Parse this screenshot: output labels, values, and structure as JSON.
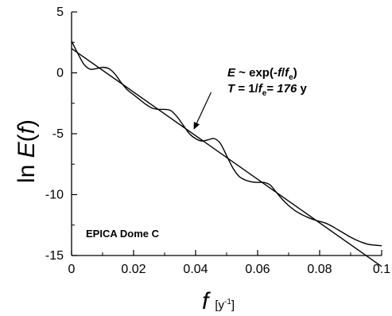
{
  "chart_data": {
    "type": "line",
    "title": "",
    "xlabel": {
      "symbol": "f",
      "unit_prefix": "[y",
      "unit_exp": "-1",
      "unit_suffix": "]"
    },
    "ylabel": {
      "prefix": "ln ",
      "symbol": "E",
      "arg_open": "(",
      "arg": "f",
      "arg_close": ")"
    },
    "xlim": [
      0,
      0.1
    ],
    "ylim": [
      -15,
      5
    ],
    "xticks": [
      {
        "value": 0,
        "label": "0"
      },
      {
        "value": 0.02,
        "label": "0.02"
      },
      {
        "value": 0.04,
        "label": "0.04"
      },
      {
        "value": 0.06,
        "label": "0.06"
      },
      {
        "value": 0.08,
        "label": "0.08"
      },
      {
        "value": 0.1,
        "label": "0.1"
      }
    ],
    "yticks": [
      {
        "value": 5,
        "label": "5"
      },
      {
        "value": 0,
        "label": "0"
      },
      {
        "value": -5,
        "label": "-5"
      },
      {
        "value": -10,
        "label": "-10"
      },
      {
        "value": -15,
        "label": "-15"
      }
    ],
    "series": [
      {
        "x": [
          0,
          0.002,
          0.004,
          0.006,
          0.008,
          0.01,
          0.012,
          0.014,
          0.016,
          0.018,
          0.02,
          0.022,
          0.024,
          0.026,
          0.028,
          0.03,
          0.032,
          0.034,
          0.036,
          0.038,
          0.04,
          0.042,
          0.044,
          0.046,
          0.048,
          0.05,
          0.052,
          0.054,
          0.056,
          0.058,
          0.06,
          0.062,
          0.064,
          0.066,
          0.068,
          0.07,
          0.072,
          0.074,
          0.076,
          0.078,
          0.08,
          0.082,
          0.084,
          0.086,
          0.088,
          0.09,
          0.092,
          0.094,
          0.096,
          0.098,
          0.1
        ],
        "y": [
          2.6,
          1.6,
          0.7,
          0.3,
          0.35,
          0.45,
          0.35,
          -0.1,
          -0.8,
          -1.4,
          -1.8,
          -2.2,
          -2.6,
          -2.9,
          -3.0,
          -3.0,
          -3.1,
          -3.6,
          -4.3,
          -5.0,
          -5.4,
          -5.6,
          -5.5,
          -5.4,
          -5.8,
          -6.8,
          -7.8,
          -8.5,
          -8.8,
          -8.95,
          -9.0,
          -9.0,
          -9.2,
          -9.8,
          -10.4,
          -10.9,
          -11.3,
          -11.6,
          -11.85,
          -12.05,
          -12.2,
          -12.35,
          -12.6,
          -12.9,
          -13.2,
          -13.5,
          -13.75,
          -13.95,
          -14.1,
          -14.15,
          -14.2
        ]
      },
      {
        "x": [
          0,
          0.1
        ],
        "y": [
          2.0,
          -15.9
        ]
      }
    ],
    "annotations": [
      {
        "id": "fit",
        "line1": {
          "E": "E",
          "rest": " ~ exp(-",
          "f": "f",
          "slash": "/",
          "f2": "f",
          "sub": "e",
          "close": ")"
        },
        "line2": {
          "T": "T",
          "eq": " = 1/",
          "f": "f",
          "sub": "e",
          "eq2": "= ",
          "val": "176",
          "unit": " y"
        },
        "arrow_from": [
          0.045,
          -1.6
        ],
        "arrow_to": [
          0.0395,
          -4.6
        ]
      },
      {
        "id": "dataset",
        "text": "EPICA Dome C"
      }
    ],
    "grid": false,
    "legend": false
  }
}
